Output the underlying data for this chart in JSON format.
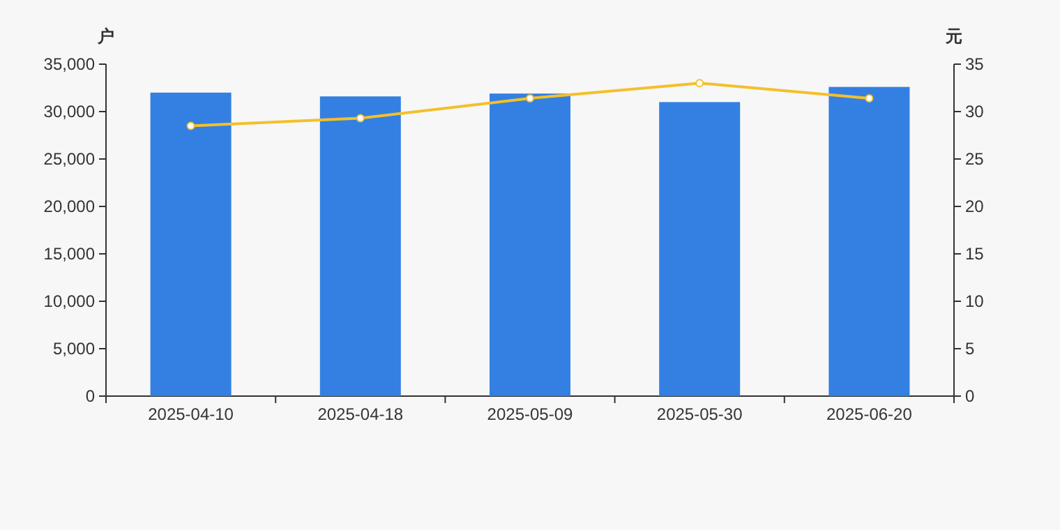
{
  "chart_data": {
    "type": "bar",
    "ylabel": "户",
    "y2label": "元",
    "categories": [
      "2025-04-10",
      "2025-04-18",
      "2025-05-09",
      "2025-05-30",
      "2025-06-20"
    ],
    "series": [
      {
        "color": "#3380e2",
        "values": [
          32000,
          31600,
          31900,
          31000,
          32600
        ]
      },
      {
        "type": "line",
        "axis": "y2",
        "color": "#f3c02c",
        "marker": "circle",
        "values": [
          28.5,
          29.3,
          31.4,
          33.0,
          31.4
        ]
      }
    ],
    "ylim": [
      0,
      35000
    ],
    "yticks": [
      {
        "value": 0,
        "label": "0"
      },
      {
        "value": 5000,
        "label": "5,000"
      },
      {
        "value": 10000,
        "label": "10,000"
      },
      {
        "value": 15000,
        "label": "15,000"
      },
      {
        "value": 20000,
        "label": "20,000"
      },
      {
        "value": 25000,
        "label": "25,000"
      },
      {
        "value": 30000,
        "label": "30,000"
      },
      {
        "value": 35000,
        "label": "35,000"
      }
    ],
    "y2lim": [
      0,
      35
    ],
    "y2ticks": [
      0,
      5,
      10,
      15,
      20,
      25,
      30,
      35
    ],
    "grid": false
  }
}
